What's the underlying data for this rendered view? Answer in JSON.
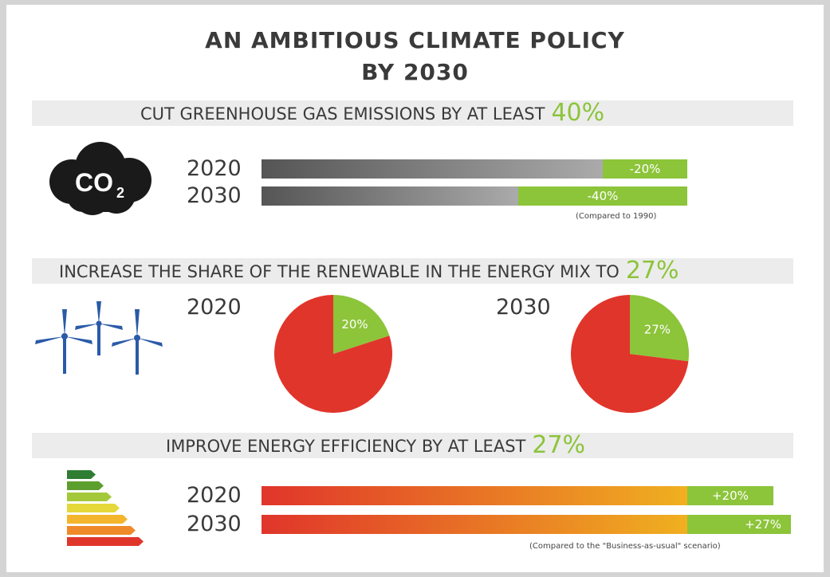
{
  "title_line1": "AN AMBITIOUS CLIMATE POLICY",
  "title_line2": "BY 2030",
  "sections": {
    "emissions": {
      "heading": "CUT GREENHOUSE GAS EMISSIONS BY AT LEAST",
      "target": "40%",
      "icon_label": "CO",
      "icon_sub": "2",
      "rows": [
        {
          "year": "2020",
          "label": "-20%"
        },
        {
          "year": "2030",
          "label": "-40%"
        }
      ],
      "note": "(Compared to 1990)"
    },
    "renewables": {
      "heading": "INCREASE THE SHARE OF THE RENEWABLE IN THE ENERGY MIX TO",
      "target": "27%",
      "pies": [
        {
          "year": "2020",
          "label": "20%"
        },
        {
          "year": "2030",
          "label": "27%"
        }
      ]
    },
    "efficiency": {
      "heading": "IMPROVE ENERGY EFFICIENCY BY AT LEAST",
      "target": "27%",
      "rows": [
        {
          "year": "2020",
          "label": "+20%"
        },
        {
          "year": "2030",
          "label": "+27%"
        }
      ],
      "note": "(Compared to the \"Business-as-usual\" scenario)"
    }
  },
  "colors": {
    "green": "#8cc43a",
    "red": "#e0352b",
    "grey": "#555555",
    "orange": "#f0a020"
  },
  "chart_data": [
    {
      "type": "bar",
      "title": "CUT GREENHOUSE GAS EMISSIONS BY AT LEAST 40%",
      "categories": [
        "2020",
        "2030"
      ],
      "values": [
        -20,
        -40
      ],
      "unit": "%",
      "note": "(Compared to 1990)"
    },
    {
      "type": "pie",
      "title": "INCREASE THE SHARE OF THE RENEWABLE IN THE ENERGY MIX TO 27%",
      "categories": [
        "2020",
        "2030"
      ],
      "values": [
        20,
        27
      ],
      "unit": "%"
    },
    {
      "type": "bar",
      "title": "IMPROVE ENERGY EFFICIENCY BY AT LEAST 27%",
      "categories": [
        "2020",
        "2030"
      ],
      "values": [
        20,
        27
      ],
      "unit": "%",
      "note": "(Compared to the \"Business-as-usual\" scenario)"
    }
  ]
}
